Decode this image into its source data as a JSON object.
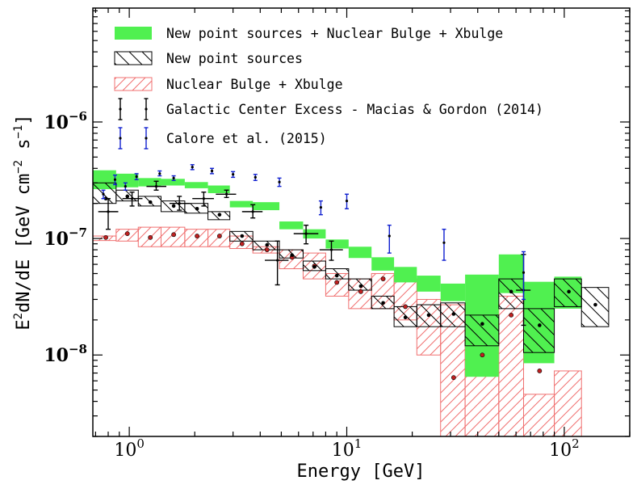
{
  "chart_data": {
    "type": "scatter",
    "xlabel": "Energy [GeV]",
    "ylabel_parts": {
      "base": "E",
      "sup1": "2",
      "mid": "dN/dE [GeV cm",
      "sup2": "−2",
      "mid2": " s",
      "sup3": "−1",
      "end": "]"
    },
    "x_scale": "log",
    "y_scale": "log",
    "xlim": [
      0.68,
      200
    ],
    "ylim": [
      2e-09,
      9.5e-06
    ],
    "x_ticks": [
      {
        "label": "10",
        "exp": "0",
        "value": 1
      },
      {
        "label": "10",
        "exp": "1",
        "value": 10
      },
      {
        "label": "10",
        "exp": "2",
        "value": 100
      }
    ],
    "y_ticks": [
      {
        "label": "10",
        "exp": "−8",
        "value": 1e-08
      },
      {
        "label": "10",
        "exp": "−7",
        "value": 1e-07
      },
      {
        "label": "10",
        "exp": "−6",
        "value": 1e-06
      }
    ],
    "legend_position": "top-left",
    "legend": [
      {
        "label": "New point sources + Nuclear Bulge + Xbulge",
        "style": "green-band"
      },
      {
        "label": "New point sources",
        "style": "black-hatch"
      },
      {
        "label": "Nuclear Bulge + Xbulge",
        "style": "red-hatch"
      },
      {
        "label": "Galactic Center Excess - Macias & Gordon (2014)",
        "style": "black-errorbar"
      },
      {
        "label": "Calore et al.  (2015)",
        "style": "blue-errorbar"
      }
    ],
    "colors": {
      "green": "#50f050",
      "black": "#000000",
      "red": "#f07070",
      "red_dot": "#c02020",
      "blue": "#1020d0"
    },
    "green_band": [
      {
        "x0": 0.68,
        "x1": 0.87,
        "lo": 2.65e-07,
        "hi": 3.85e-07
      },
      {
        "x0": 0.87,
        "x1": 1.1,
        "lo": 2.75e-07,
        "hi": 3.6e-07
      },
      {
        "x0": 1.1,
        "x1": 1.4,
        "lo": 2.8e-07,
        "hi": 3.3e-07
      },
      {
        "x0": 1.4,
        "x1": 1.8,
        "lo": 2.85e-07,
        "hi": 3.25e-07
      },
      {
        "x0": 1.8,
        "x1": 2.3,
        "lo": 2.7e-07,
        "hi": 3.05e-07
      },
      {
        "x0": 2.3,
        "x1": 2.9,
        "lo": 2.45e-07,
        "hi": 2.85e-07
      },
      {
        "x0": 2.9,
        "x1": 3.7,
        "lo": 1.85e-07,
        "hi": 2.1e-07
      },
      {
        "x0": 3.7,
        "x1": 4.9,
        "lo": 1.75e-07,
        "hi": 2.05e-07
      },
      {
        "x0": 4.9,
        "x1": 6.3,
        "lo": 1.2e-07,
        "hi": 1.4e-07
      },
      {
        "x0": 6.3,
        "x1": 8.0,
        "lo": 1e-07,
        "hi": 1.2e-07
      },
      {
        "x0": 8.0,
        "x1": 10.2,
        "lo": 8.2e-08,
        "hi": 9.8e-08
      },
      {
        "x0": 10.2,
        "x1": 13.0,
        "lo": 6.8e-08,
        "hi": 8.5e-08
      },
      {
        "x0": 13.0,
        "x1": 16.5,
        "lo": 5.3e-08,
        "hi": 6.9e-08
      },
      {
        "x0": 16.5,
        "x1": 21.0,
        "lo": 4.2e-08,
        "hi": 5.7e-08
      },
      {
        "x0": 21.0,
        "x1": 27.0,
        "lo": 3.5e-08,
        "hi": 4.8e-08
      },
      {
        "x0": 27.0,
        "x1": 35.0,
        "lo": 2.9e-08,
        "hi": 4.1e-08
      },
      {
        "x0": 35.0,
        "x1": 50.0,
        "lo": 6.5e-09,
        "hi": 4.9e-08
      },
      {
        "x0": 50.0,
        "x1": 65.0,
        "lo": 3.4e-08,
        "hi": 7.3e-08
      },
      {
        "x0": 65.0,
        "x1": 90.0,
        "lo": 8.5e-09,
        "hi": 4.25e-08
      },
      {
        "x0": 90.0,
        "x1": 120.0,
        "lo": 2.5e-08,
        "hi": 4.7e-08
      }
    ],
    "black_hatch": [
      {
        "x0": 0.68,
        "x1": 0.87,
        "lo": 2e-07,
        "hi": 3e-07
      },
      {
        "x0": 0.87,
        "x1": 1.1,
        "lo": 2.1e-07,
        "hi": 2.6e-07
      },
      {
        "x0": 1.1,
        "x1": 1.4,
        "lo": 1.9e-07,
        "hi": 2.3e-07
      },
      {
        "x0": 1.4,
        "x1": 1.8,
        "lo": 1.7e-07,
        "hi": 2.1e-07
      },
      {
        "x0": 1.8,
        "x1": 2.3,
        "lo": 1.65e-07,
        "hi": 2e-07
      },
      {
        "x0": 2.3,
        "x1": 2.9,
        "lo": 1.45e-07,
        "hi": 1.7e-07
      },
      {
        "x0": 2.9,
        "x1": 3.7,
        "lo": 9.5e-08,
        "hi": 1.15e-07
      },
      {
        "x0": 3.7,
        "x1": 4.9,
        "lo": 8e-08,
        "hi": 9.5e-08
      },
      {
        "x0": 4.9,
        "x1": 6.3,
        "lo": 6.8e-08,
        "hi": 8e-08
      },
      {
        "x0": 6.3,
        "x1": 8.0,
        "lo": 5.3e-08,
        "hi": 6.4e-08
      },
      {
        "x0": 8.0,
        "x1": 10.2,
        "lo": 4.5e-08,
        "hi": 5.5e-08
      },
      {
        "x0": 10.2,
        "x1": 13.0,
        "lo": 3.6e-08,
        "hi": 4.5e-08
      },
      {
        "x0": 13.0,
        "x1": 16.5,
        "lo": 2.5e-08,
        "hi": 3.2e-08
      },
      {
        "x0": 16.5,
        "x1": 21.0,
        "lo": 1.75e-08,
        "hi": 2.6e-08
      },
      {
        "x0": 21.0,
        "x1": 27.0,
        "lo": 1.75e-08,
        "hi": 2.7e-08
      },
      {
        "x0": 27.0,
        "x1": 35.0,
        "lo": 1.75e-08,
        "hi": 2.8e-08
      },
      {
        "x0": 35.0,
        "x1": 50.0,
        "lo": 1.2e-08,
        "hi": 2.2e-08
      },
      {
        "x0": 50.0,
        "x1": 65.0,
        "lo": 2.5e-08,
        "hi": 4.5e-08
      },
      {
        "x0": 65.0,
        "x1": 90.0,
        "lo": 1.05e-08,
        "hi": 2.5e-08
      },
      {
        "x0": 90.0,
        "x1": 120.0,
        "lo": 2.6e-08,
        "hi": 4.5e-08
      },
      {
        "x0": 120.0,
        "x1": 160.0,
        "lo": 1.75e-08,
        "hi": 3.8e-08
      }
    ],
    "black_hatch_points": [
      [
        0.78,
        2.2e-07
      ],
      [
        0.98,
        2.3e-07
      ],
      [
        1.25,
        2.05e-07
      ],
      [
        1.6,
        1.9e-07
      ],
      [
        2.05,
        1.8e-07
      ],
      [
        2.6,
        1.6e-07
      ],
      [
        3.3,
        1.05e-07
      ],
      [
        4.3,
        8.8e-08
      ],
      [
        5.6,
        7.2e-08
      ],
      [
        7.1,
        5.7e-08
      ],
      [
        9.0,
        4.8e-08
      ],
      [
        11.6,
        3.9e-08
      ],
      [
        14.7,
        2.8e-08
      ],
      [
        18.6,
        2.1e-08
      ],
      [
        23.8,
        2.2e-08
      ],
      [
        31.0,
        2.25e-08
      ],
      [
        42.0,
        1.85e-08
      ],
      [
        57.0,
        3.5e-08
      ],
      [
        77.0,
        1.8e-08
      ],
      [
        105.0,
        3.5e-08
      ],
      [
        139.0,
        2.7e-08
      ]
    ],
    "red_hatch": [
      {
        "x0": 0.68,
        "x1": 0.87,
        "lo": 9.6e-08,
        "hi": 1.05e-07
      },
      {
        "x0": 0.87,
        "x1": 1.1,
        "lo": 9.5e-08,
        "hi": 1.2e-07
      },
      {
        "x0": 1.1,
        "x1": 1.4,
        "lo": 8.5e-08,
        "hi": 1.25e-07
      },
      {
        "x0": 1.4,
        "x1": 1.8,
        "lo": 8.5e-08,
        "hi": 1.25e-07
      },
      {
        "x0": 1.8,
        "x1": 2.3,
        "lo": 8.5e-08,
        "hi": 1.2e-07
      },
      {
        "x0": 2.3,
        "x1": 2.9,
        "lo": 8.5e-08,
        "hi": 1.2e-07
      },
      {
        "x0": 2.9,
        "x1": 3.7,
        "lo": 8.2e-08,
        "hi": 1.05e-07
      },
      {
        "x0": 3.7,
        "x1": 4.9,
        "lo": 7.5e-08,
        "hi": 8.5e-08
      },
      {
        "x0": 4.9,
        "x1": 6.3,
        "lo": 5.5e-08,
        "hi": 8e-08
      },
      {
        "x0": 6.3,
        "x1": 8.0,
        "lo": 4.5e-08,
        "hi": 7.5e-08
      },
      {
        "x0": 8.0,
        "x1": 10.2,
        "lo": 3.2e-08,
        "hi": 5e-08
      },
      {
        "x0": 10.2,
        "x1": 13.0,
        "lo": 2.5e-08,
        "hi": 4.5e-08
      },
      {
        "x0": 13.0,
        "x1": 16.5,
        "lo": 2.5e-08,
        "hi": 5e-08
      },
      {
        "x0": 16.5,
        "x1": 21.0,
        "lo": 2e-08,
        "hi": 4.5e-08
      },
      {
        "x0": 21.0,
        "x1": 27.0,
        "lo": 1e-08,
        "hi": 3e-08
      },
      {
        "x0": 27.0,
        "x1": 35.0,
        "lo": 2e-09,
        "hi": 2.7e-08
      },
      {
        "x0": 35.0,
        "x1": 50.0,
        "lo": 2e-09,
        "hi": 1.9e-08
      },
      {
        "x0": 50.0,
        "x1": 65.0,
        "lo": 2e-09,
        "hi": 3.2e-08
      },
      {
        "x0": 65.0,
        "x1": 90.0,
        "lo": 2e-09,
        "hi": 4.6e-09
      },
      {
        "x0": 90.0,
        "x1": 120.0,
        "lo": 2e-09,
        "hi": 7.3e-09
      }
    ],
    "red_points": [
      [
        0.78,
        1.02e-07
      ],
      [
        0.98,
        1.1e-07
      ],
      [
        1.25,
        1.02e-07
      ],
      [
        1.6,
        1.08e-07
      ],
      [
        2.05,
        1.05e-07
      ],
      [
        2.6,
        1.05e-07
      ],
      [
        3.3,
        9e-08
      ],
      [
        4.3,
        8e-08
      ],
      [
        5.6,
        6.9e-08
      ],
      [
        7.1,
        5.8e-08
      ],
      [
        9.0,
        4.2e-08
      ],
      [
        11.6,
        3.5e-08
      ],
      [
        14.7,
        4.5e-08
      ],
      [
        18.6,
        2.6e-08
      ],
      [
        31.0,
        6.4e-09
      ],
      [
        42.0,
        1e-08
      ],
      [
        57.0,
        2.2e-08
      ],
      [
        77.0,
        7.3e-09
      ]
    ],
    "gce_points": [
      {
        "x": 0.8,
        "y": 1.7e-07,
        "lo": 1.2e-07,
        "hi": 2.2e-07,
        "x0": 0.72,
        "x1": 0.89
      },
      {
        "x": 1.03,
        "y": 2.2e-07,
        "lo": 1.9e-07,
        "hi": 2.5e-07,
        "x0": 0.93,
        "x1": 1.15
      },
      {
        "x": 1.33,
        "y": 2.8e-07,
        "lo": 2.6e-07,
        "hi": 3.1e-07,
        "x0": 1.2,
        "x1": 1.48
      },
      {
        "x": 1.7,
        "y": 2e-07,
        "lo": 1.75e-07,
        "hi": 2.3e-07,
        "x0": 1.53,
        "x1": 1.9
      },
      {
        "x": 2.2,
        "y": 2.2e-07,
        "lo": 1.9e-07,
        "hi": 2.5e-07,
        "x0": 1.95,
        "x1": 2.45
      },
      {
        "x": 2.8,
        "y": 2.4e-07,
        "lo": 2.25e-07,
        "hi": 2.6e-07,
        "x0": 2.5,
        "x1": 3.1
      },
      {
        "x": 3.7,
        "y": 1.7e-07,
        "lo": 1.5e-07,
        "hi": 1.95e-07,
        "x0": 3.3,
        "x1": 4.1
      },
      {
        "x": 4.8,
        "y": 6.5e-08,
        "lo": 4e-08,
        "hi": 9.5e-08,
        "x0": 4.2,
        "x1": 5.4
      },
      {
        "x": 6.5,
        "y": 1.1e-07,
        "lo": 9e-08,
        "hi": 1.3e-07,
        "x0": 5.7,
        "x1": 7.4
      },
      {
        "x": 8.5,
        "y": 8e-08,
        "lo": 6.5e-08,
        "hi": 9.5e-08,
        "x0": 7.5,
        "x1": 9.6
      },
      {
        "x": 65.0,
        "y": 3.6e-08,
        "lo": 1.8e-08,
        "hi": 7.3e-08,
        "x0": 60,
        "x1": 70
      }
    ],
    "calore_points": [
      {
        "x": 0.76,
        "y": 2.4e-07,
        "lo": 2.2e-07,
        "hi": 2.6e-07
      },
      {
        "x": 0.86,
        "y": 3.2e-07,
        "lo": 2.9e-07,
        "hi": 3.5e-07
      },
      {
        "x": 0.96,
        "y": 2.8e-07,
        "lo": 2.6e-07,
        "hi": 3e-07
      },
      {
        "x": 1.08,
        "y": 3.4e-07,
        "lo": 3.2e-07,
        "hi": 3.6e-07
      },
      {
        "x": 1.38,
        "y": 3.6e-07,
        "lo": 3.45e-07,
        "hi": 3.8e-07
      },
      {
        "x": 1.6,
        "y": 3.3e-07,
        "lo": 3.15e-07,
        "hi": 3.45e-07
      },
      {
        "x": 1.95,
        "y": 4.1e-07,
        "lo": 3.9e-07,
        "hi": 4.3e-07
      },
      {
        "x": 2.4,
        "y": 3.8e-07,
        "lo": 3.6e-07,
        "hi": 4e-07
      },
      {
        "x": 3.0,
        "y": 3.55e-07,
        "lo": 3.35e-07,
        "hi": 3.75e-07
      },
      {
        "x": 3.8,
        "y": 3.35e-07,
        "lo": 3.15e-07,
        "hi": 3.55e-07
      },
      {
        "x": 4.9,
        "y": 3.05e-07,
        "lo": 2.8e-07,
        "hi": 3.3e-07
      },
      {
        "x": 7.6,
        "y": 1.85e-07,
        "lo": 1.6e-07,
        "hi": 2.1e-07
      },
      {
        "x": 10.0,
        "y": 2.1e-07,
        "lo": 1.8e-07,
        "hi": 2.4e-07
      },
      {
        "x": 15.7,
        "y": 1.05e-07,
        "lo": 7.5e-08,
        "hi": 1.3e-07
      },
      {
        "x": 28.0,
        "y": 9.2e-08,
        "lo": 6.5e-08,
        "hi": 1.2e-07
      },
      {
        "x": 65.0,
        "y": 5.1e-08,
        "lo": 3e-08,
        "hi": 7.7e-08
      }
    ]
  }
}
